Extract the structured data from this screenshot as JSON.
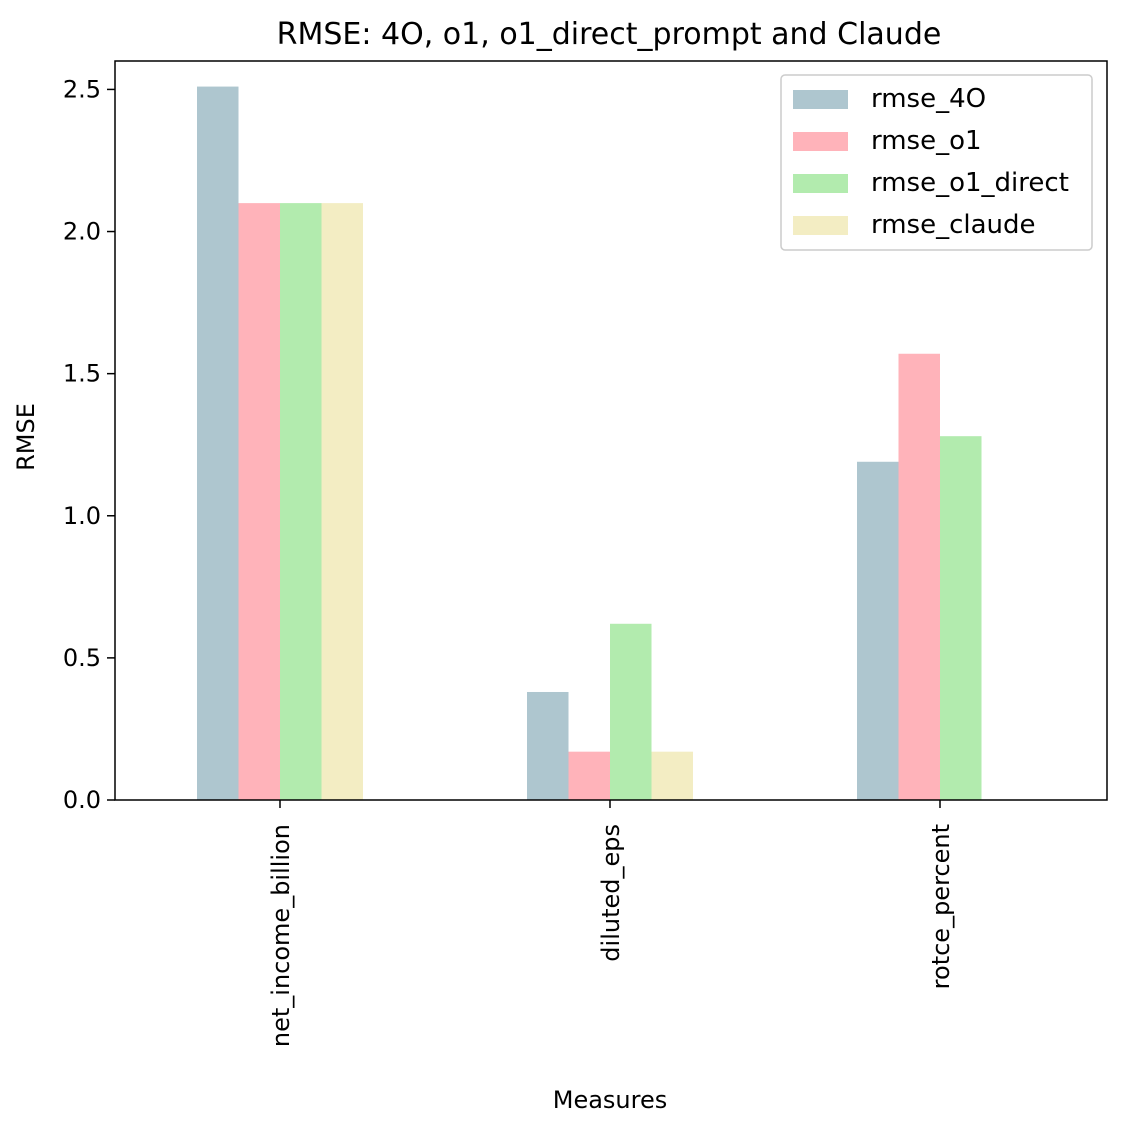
{
  "chart_data": {
    "type": "bar",
    "title": "RMSE: 4O, o1, o1_direct_prompt and Claude",
    "xlabel": "Measures",
    "ylabel": "RMSE",
    "categories": [
      "net_income_billion",
      "diluted_eps",
      "rotce_percent"
    ],
    "ylim": [
      0,
      2.6
    ],
    "yticks": [
      "0.0",
      "0.5",
      "1.0",
      "1.5",
      "2.0",
      "2.5"
    ],
    "grid": false,
    "legend_position": "top-right",
    "series": [
      {
        "name": "rmse_4O",
        "color": "#AEC6CF",
        "values": [
          2.51,
          0.38,
          1.19
        ]
      },
      {
        "name": "rmse_o1",
        "color": "#FFB3BA",
        "values": [
          2.1,
          0.17,
          1.57
        ]
      },
      {
        "name": "rmse_o1_direct",
        "color": "#B2EBAE",
        "values": [
          2.1,
          0.62,
          1.28
        ]
      },
      {
        "name": "rmse_claude",
        "color": "#F3EDC3",
        "values": [
          2.1,
          0.17,
          0
        ]
      }
    ]
  }
}
